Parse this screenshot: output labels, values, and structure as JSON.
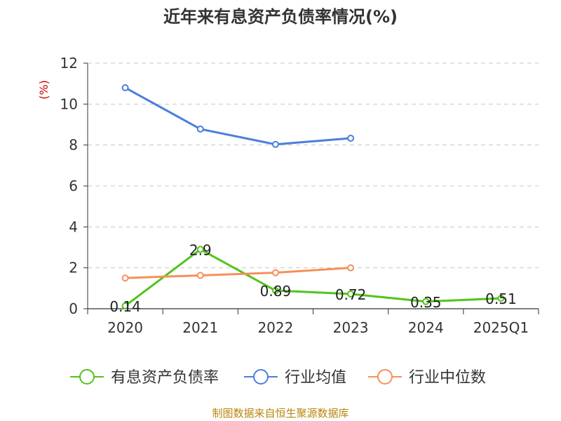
{
  "title": "近年来有息资产负债率情况(%)",
  "source": "制图数据来自恒生聚源数据库",
  "colors": {
    "company": "#52c41a",
    "industry_avg": "#4a7fdc",
    "industry_median": "#f5905a",
    "axis": "#333333",
    "grid": "#c8c8c8",
    "unit": "#cc0000"
  },
  "chart_data": {
    "type": "line",
    "title": "近年来有息资产负债率情况(%)",
    "ylabel": "(%)",
    "xlabel": "",
    "categories": [
      "2020",
      "2021",
      "2022",
      "2023",
      "2024",
      "2025Q1"
    ],
    "ylim": [
      0,
      12
    ],
    "yticks": [
      0,
      2,
      4,
      6,
      8,
      10,
      12
    ],
    "grid": "horizontal dashed",
    "legend_position": "bottom",
    "series": [
      {
        "name": "有息资产负债率",
        "color": "#52c41a",
        "values": [
          0.14,
          2.9,
          0.89,
          0.72,
          0.35,
          0.51
        ],
        "labels": [
          "0.14",
          "2.9",
          "0.89",
          "0.72",
          "0.35",
          "0.51"
        ]
      },
      {
        "name": "行业均值",
        "color": "#4a7fdc",
        "values": [
          10.8,
          8.78,
          8.03,
          8.33,
          null,
          null
        ]
      },
      {
        "name": "行业中位数",
        "color": "#f5905a",
        "values": [
          1.5,
          1.63,
          1.76,
          2.0,
          null,
          null
        ]
      }
    ]
  }
}
